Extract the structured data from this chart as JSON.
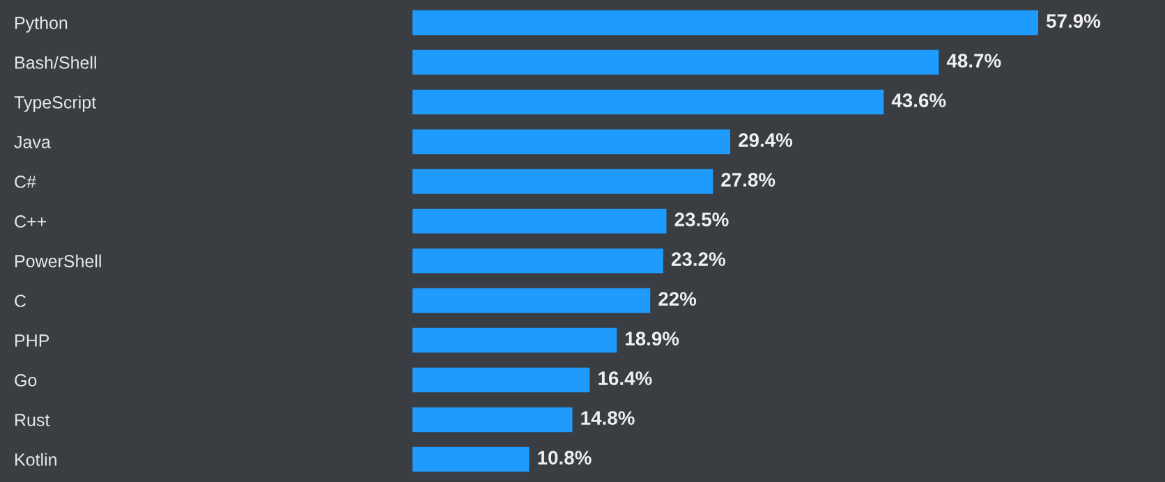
{
  "chart_data": {
    "type": "bar",
    "orientation": "horizontal",
    "categories": [
      "Python",
      "Bash/Shell",
      "TypeScript",
      "Java",
      "C#",
      "C++",
      "PowerShell",
      "C",
      "PHP",
      "Go",
      "Rust",
      "Kotlin"
    ],
    "values": [
      57.9,
      48.7,
      43.6,
      29.4,
      27.8,
      23.5,
      23.2,
      22,
      18.9,
      16.4,
      14.8,
      10.8
    ],
    "value_labels": [
      "57.9%",
      "48.7%",
      "43.6%",
      "29.4%",
      "27.8%",
      "23.5%",
      "23.2%",
      "22%",
      "18.9%",
      "16.4%",
      "14.8%",
      "10.8%"
    ],
    "color": "#1f9bfe",
    "grid": false,
    "legend": false,
    "tick_labels": "y"
  }
}
